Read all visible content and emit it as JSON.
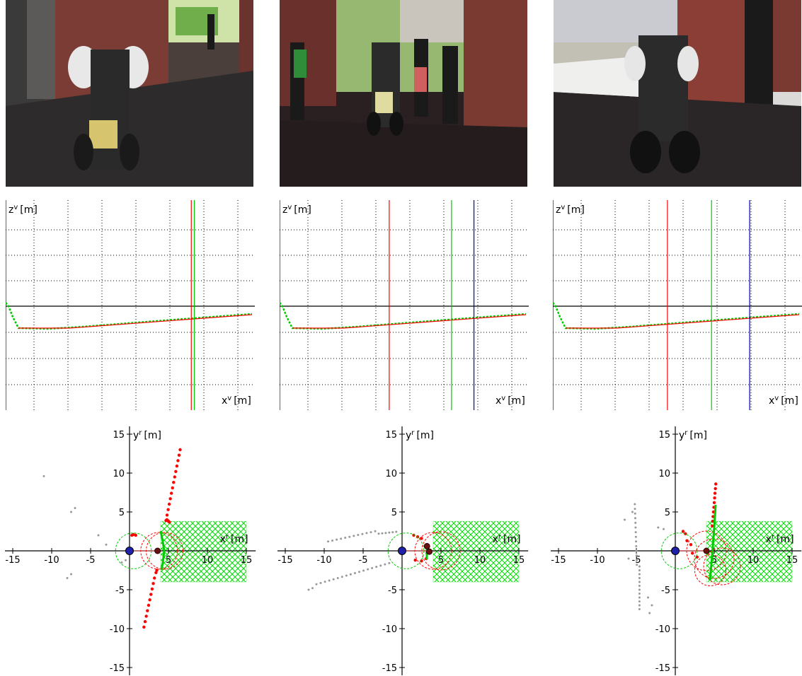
{
  "rows": {
    "photos": [
      {
        "scene": "robot approaching in covered walkway"
      },
      {
        "scene": "robot among pedestrians at walkway exit"
      },
      {
        "scene": "robot near brick pillar in bright courtyard"
      }
    ]
  },
  "chart_data": [
    {
      "type": "line",
      "panel": 1,
      "xlabel": "x^v [m]",
      "ylabel": "z^v [m]",
      "series": [
        {
          "color": "#00cc00",
          "values": "ground profile"
        },
        {
          "color": "#ff0000",
          "values": "fitted ground line"
        }
      ],
      "vlines": [
        {
          "color": "#ff0000",
          "x": 0.745
        },
        {
          "color": "#00cc00",
          "x": 0.757
        }
      ],
      "grid": true
    },
    {
      "type": "line",
      "panel": 2,
      "xlabel": "x^v [m]",
      "ylabel": "z^v [m]",
      "vlines": [
        {
          "color": "#ff0000",
          "x": 0.44
        },
        {
          "color": "#00cc00",
          "x": 0.69
        },
        {
          "color": "#0000cc",
          "x": 0.78
        }
      ],
      "grid": true
    },
    {
      "type": "line",
      "panel": 3,
      "xlabel": "x^v [m]",
      "ylabel": "z^v [m]",
      "vlines": [
        {
          "color": "#ff0000",
          "x": 0.46
        },
        {
          "color": "#00cc00",
          "x": 0.637
        },
        {
          "color": "#0000cc",
          "x": 0.79
        }
      ],
      "grid": true
    },
    {
      "type": "scatter",
      "panel": 1,
      "xlabel": "x^r [m]",
      "ylabel": "y^r [m]",
      "xticks": [
        "-15",
        "-10",
        "-5",
        "5",
        "10",
        "15"
      ],
      "yticks": [
        "15",
        "10",
        "5",
        "-5",
        "-10",
        "-15"
      ],
      "xlim": [
        -15,
        15
      ],
      "ylim": [
        -15,
        15
      ]
    },
    {
      "type": "scatter",
      "panel": 2,
      "xlabel": "x^r [m]",
      "ylabel": "y^r [m]",
      "xticks": [
        "-15",
        "-10",
        "-5",
        "5",
        "10",
        "15"
      ],
      "yticks": [
        "15",
        "10",
        "5",
        "-5",
        "-10",
        "-15"
      ],
      "xlim": [
        -15,
        15
      ],
      "ylim": [
        -15,
        15
      ]
    },
    {
      "type": "scatter",
      "panel": 3,
      "xlabel": "x^r [m]",
      "ylabel": "y^r [m]",
      "xticks": [
        "-15",
        "-10",
        "-5",
        "5",
        "10",
        "15"
      ],
      "yticks": [
        "15",
        "10",
        "5",
        "-5",
        "-10",
        "-15"
      ],
      "xlim": [
        -15,
        15
      ],
      "ylim": [
        -15,
        15
      ]
    }
  ],
  "labels": {
    "zv_main": "z",
    "zv_sup": "v",
    "zv_unit": "[m]",
    "xv_main": "x",
    "xv_sup": "v",
    "xv_unit": "[m]",
    "xr_main": "x",
    "xr_sup": "r",
    "xr_unit": "[m]",
    "yr_main": "y",
    "yr_sup": "r",
    "yr_unit": "[m]"
  },
  "colors": {
    "green": "#00cc00",
    "red": "#ff0000",
    "blue": "#0000cc",
    "grid": "#000000",
    "gray": "#999999",
    "hatch": "#00dd00"
  }
}
